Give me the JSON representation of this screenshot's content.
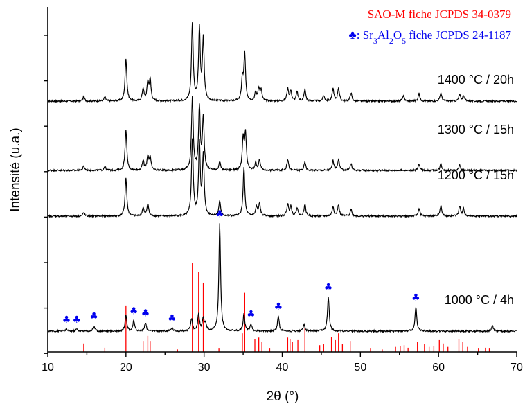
{
  "chart_data": {
    "type": "line",
    "xlabel": "2θ (°)",
    "ylabel": "Intensité (u.a.)",
    "xlim": [
      10,
      70
    ],
    "x_ticks": [
      10,
      20,
      30,
      40,
      50,
      60,
      70
    ],
    "legend_position": "top-right",
    "colors": {
      "trace": "#000000",
      "reference": "#ff0000",
      "marker": "#0000ee"
    },
    "legend": {
      "reference_text": "SAO-M fiche JCPDS 34-0379",
      "marker_symbol": "♣",
      "marker_sep": ": ",
      "marker_formula": [
        {
          "t": "Sr",
          "sub": false
        },
        {
          "t": "3",
          "sub": true
        },
        {
          "t": "Al",
          "sub": false
        },
        {
          "t": "2",
          "sub": true
        },
        {
          "t": "O",
          "sub": false
        },
        {
          "t": "5",
          "sub": true
        }
      ],
      "marker_suffix": " fiche JCPDS 24-1187"
    },
    "series": [
      {
        "name": "1400 °C / 20h",
        "peaks": [
          [
            14.6,
            6
          ],
          [
            17.3,
            6
          ],
          [
            20.0,
            62
          ],
          [
            22.2,
            18
          ],
          [
            22.8,
            26
          ],
          [
            23.1,
            30
          ],
          [
            28.5,
            112
          ],
          [
            29.4,
            102
          ],
          [
            29.9,
            88
          ],
          [
            34.9,
            30
          ],
          [
            35.2,
            67
          ],
          [
            36.6,
            12
          ],
          [
            37.0,
            18
          ],
          [
            37.3,
            15
          ],
          [
            40.7,
            18
          ],
          [
            41.1,
            14
          ],
          [
            41.9,
            13
          ],
          [
            42.9,
            17
          ],
          [
            45.3,
            8
          ],
          [
            46.5,
            18
          ],
          [
            47.2,
            19
          ],
          [
            48.8,
            12
          ],
          [
            55.5,
            8
          ],
          [
            57.5,
            11
          ],
          [
            60.3,
            12
          ],
          [
            62.7,
            9
          ],
          [
            63.2,
            8
          ]
        ]
      },
      {
        "name": "1300 °C / 15h",
        "peaks": [
          [
            14.6,
            6
          ],
          [
            17.3,
            6
          ],
          [
            20.0,
            58
          ],
          [
            22.2,
            14
          ],
          [
            22.8,
            20
          ],
          [
            23.1,
            18
          ],
          [
            28.5,
            105
          ],
          [
            29.4,
            90
          ],
          [
            29.9,
            76
          ],
          [
            32.0,
            12
          ],
          [
            35.0,
            45
          ],
          [
            35.3,
            52
          ],
          [
            36.6,
            10
          ],
          [
            37.1,
            15
          ],
          [
            40.7,
            16
          ],
          [
            42.9,
            12
          ],
          [
            46.5,
            14
          ],
          [
            47.2,
            16
          ],
          [
            48.8,
            10
          ],
          [
            57.5,
            9
          ],
          [
            60.3,
            10
          ],
          [
            62.7,
            8
          ]
        ]
      },
      {
        "name": "1200 °C / 15h",
        "peaks": [
          [
            14.6,
            5
          ],
          [
            20.0,
            55
          ],
          [
            22.2,
            12
          ],
          [
            22.8,
            18
          ],
          [
            28.5,
            110
          ],
          [
            29.4,
            103
          ],
          [
            29.9,
            87
          ],
          [
            32.0,
            22
          ],
          [
            35.1,
            70
          ],
          [
            36.7,
            13
          ],
          [
            37.1,
            18
          ],
          [
            40.7,
            17
          ],
          [
            41.1,
            14
          ],
          [
            41.9,
            12
          ],
          [
            42.9,
            17
          ],
          [
            46.5,
            14
          ],
          [
            47.2,
            16
          ],
          [
            48.8,
            10
          ],
          [
            57.5,
            11
          ],
          [
            60.3,
            15
          ],
          [
            62.7,
            14
          ],
          [
            63.2,
            10
          ]
        ]
      },
      {
        "name": "1000 °C / 4h",
        "peaks": [
          [
            12.4,
            3
          ],
          [
            13.7,
            3
          ],
          [
            15.9,
            8
          ],
          [
            20.0,
            24
          ],
          [
            21.0,
            15
          ],
          [
            22.5,
            12
          ],
          [
            25.9,
            5
          ],
          [
            28.4,
            18
          ],
          [
            29.3,
            25
          ],
          [
            29.9,
            18
          ],
          [
            30.2,
            10
          ],
          [
            32.0,
            155
          ],
          [
            35.1,
            25
          ],
          [
            36.0,
            10
          ],
          [
            39.5,
            22
          ],
          [
            42.8,
            10
          ],
          [
            45.9,
            50
          ],
          [
            57.1,
            35
          ],
          [
            66.9,
            8
          ]
        ]
      }
    ],
    "reference_lines": [
      [
        14.6,
        10
      ],
      [
        17.3,
        5
      ],
      [
        20.0,
        55
      ],
      [
        22.2,
        13
      ],
      [
        22.8,
        19
      ],
      [
        23.1,
        13
      ],
      [
        26.6,
        3
      ],
      [
        28.5,
        105
      ],
      [
        29.3,
        95
      ],
      [
        29.9,
        82
      ],
      [
        31.9,
        4
      ],
      [
        34.9,
        22
      ],
      [
        35.2,
        70
      ],
      [
        36.5,
        15
      ],
      [
        37.0,
        17
      ],
      [
        37.4,
        12
      ],
      [
        38.4,
        4
      ],
      [
        40.7,
        17
      ],
      [
        41.0,
        15
      ],
      [
        41.3,
        12
      ],
      [
        42.0,
        14
      ],
      [
        42.9,
        28
      ],
      [
        44.8,
        8
      ],
      [
        45.3,
        9
      ],
      [
        46.3,
        18
      ],
      [
        46.8,
        14
      ],
      [
        47.2,
        22
      ],
      [
        47.7,
        9
      ],
      [
        48.7,
        13
      ],
      [
        51.3,
        4
      ],
      [
        52.8,
        3
      ],
      [
        54.5,
        6
      ],
      [
        55.1,
        7
      ],
      [
        55.6,
        8
      ],
      [
        56.1,
        5
      ],
      [
        57.3,
        12
      ],
      [
        58.2,
        9
      ],
      [
        58.8,
        6
      ],
      [
        59.4,
        7
      ],
      [
        60.1,
        14
      ],
      [
        60.6,
        10
      ],
      [
        61.2,
        6
      ],
      [
        62.6,
        15
      ],
      [
        63.1,
        12
      ],
      [
        63.7,
        6
      ],
      [
        65.1,
        4
      ],
      [
        66.0,
        5
      ],
      [
        66.5,
        4
      ]
    ],
    "markers": [
      12.4,
      13.7,
      15.9,
      21.0,
      22.5,
      25.9,
      32.0,
      36.0,
      39.5,
      45.9,
      57.1
    ]
  }
}
